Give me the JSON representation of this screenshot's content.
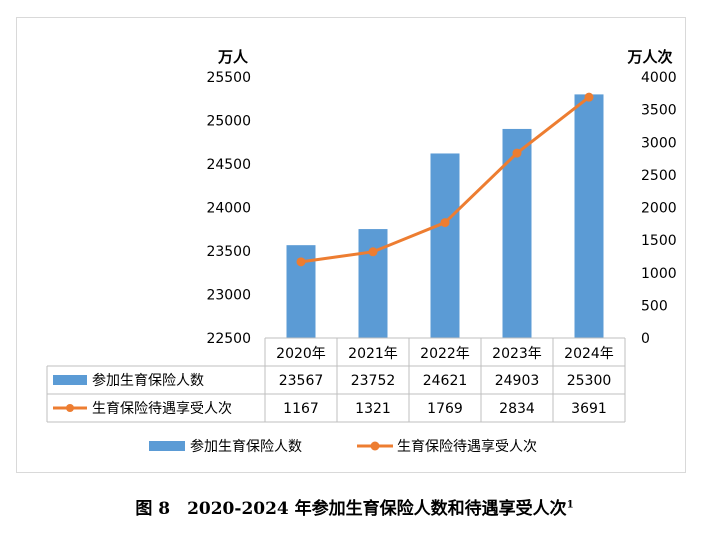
{
  "chart_data": {
    "type": "bar+line",
    "categories": [
      "2020年",
      "2021年",
      "2022年",
      "2023年",
      "2024年"
    ],
    "series": [
      {
        "name": "参加生育保险人数",
        "type": "bar",
        "axis": "left",
        "color": "#5b9bd5",
        "values": [
          23567,
          23752,
          24621,
          24903,
          25300
        ]
      },
      {
        "name": "生育保险待遇享受人次",
        "type": "line",
        "axis": "right",
        "color": "#ed7d31",
        "values": [
          1167,
          1321,
          1769,
          2834,
          3691
        ]
      }
    ],
    "left_axis": {
      "unit": "万人",
      "range": [
        22500,
        25500
      ],
      "ticks": [
        "22500",
        "23000",
        "23500",
        "24000",
        "24500",
        "25000",
        "25500"
      ]
    },
    "right_axis": {
      "unit": "万人次",
      "range": [
        0,
        4000
      ],
      "ticks": [
        "0",
        "500",
        "1000",
        "1500",
        "2000",
        "2500",
        "3000",
        "3500",
        "4000"
      ]
    },
    "data_table": true,
    "legend": "bottom",
    "grid": false
  },
  "caption": {
    "text": "图 8　2020-2024 年参加生育保险人数和待遇享受人次",
    "note_mark": "1"
  }
}
